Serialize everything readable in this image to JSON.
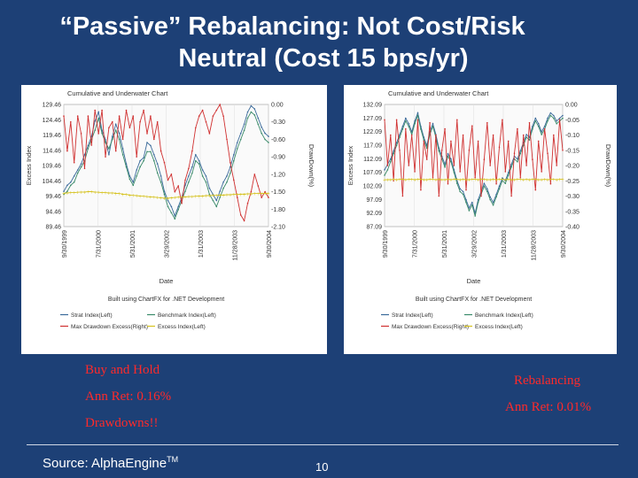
{
  "slide": {
    "title_line1": "“Passive” Rebalancing: Not Cost/Risk",
    "title_line2": "Neutral (Cost 15 bps/yr)",
    "left_caption": [
      "Buy and Hold",
      "Ann Ret: 0.16%",
      "Drawdowns!!"
    ],
    "right_caption": [
      "Rebalancing",
      "Ann Ret: 0.01%"
    ],
    "source_text": "Source: AlphaEngine",
    "source_tm": "TM",
    "page_number": "10"
  },
  "colors": {
    "strat": "#3a6a9a",
    "benchmark": "#3a8a6a",
    "drawdown": "#d03030",
    "excess": "#d6c21e",
    "caption": "#ff2a2a",
    "background": "#1d4076"
  },
  "chart_data": [
    {
      "type": "line",
      "title": "Cumulative and Underwater Chart",
      "xlabel": "Date",
      "ylabel": "Excess Index",
      "y2label": "DrawDown(%)",
      "footer": "Built using ChartFX for .NET Development",
      "x_ticks": [
        "9/30/1999",
        "7/31/2000",
        "5/31/2001",
        "3/29/2002",
        "1/31/2003",
        "11/28/2003",
        "9/30/2004"
      ],
      "y_ticks": [
        "129.46",
        "124.46",
        "119.46",
        "114.46",
        "109.46",
        "104.46",
        "99.46",
        "94.46",
        "89.46"
      ],
      "ylim": [
        89.46,
        129.46
      ],
      "y2_ticks": [
        "0.00",
        "-0.30",
        "-0.60",
        "-0.90",
        "-1.20",
        "-1.50",
        "-1.80",
        "-2.10"
      ],
      "y2lim": [
        -2.1,
        0
      ],
      "legend": [
        "Strat Index(Left)",
        "Benchmark Index(Left)",
        "Max Drawdown Excess(Right)",
        "Excess Index(Left)"
      ],
      "series": [
        {
          "name": "Strat Index(Left)",
          "axis": "left",
          "values": [
            101,
            103,
            104,
            106,
            108,
            110,
            113,
            116,
            119,
            124,
            127,
            121,
            118,
            113,
            119,
            123,
            120,
            115,
            110,
            106,
            104,
            108,
            111,
            112,
            117,
            116,
            113,
            110,
            106,
            101,
            98,
            96,
            93,
            96,
            99,
            103,
            106,
            109,
            113,
            111,
            108,
            106,
            102,
            100,
            98,
            101,
            104,
            106,
            109,
            113,
            117,
            120,
            123,
            127,
            129,
            128,
            125,
            122,
            120,
            119
          ]
        },
        {
          "name": "Benchmark Index(Left)",
          "axis": "left",
          "values": [
            100,
            101,
            103,
            104,
            107,
            109,
            111,
            115,
            118,
            121,
            125,
            120,
            117,
            115,
            118,
            121,
            118,
            113,
            109,
            105,
            103,
            106,
            109,
            111,
            114,
            114,
            111,
            107,
            104,
            100,
            96,
            94,
            92,
            95,
            98,
            101,
            104,
            107,
            111,
            110,
            106,
            104,
            100,
            98,
            96,
            99,
            102,
            104,
            107,
            111,
            115,
            118,
            121,
            125,
            127,
            126,
            123,
            120,
            118,
            117
          ]
        },
        {
          "name": "Max Drawdown Excess(Right)",
          "axis": "right",
          "values": [
            -0.2,
            -0.8,
            -0.3,
            -1.0,
            -0.2,
            -0.5,
            -1.1,
            -0.2,
            -0.7,
            -0.1,
            -0.5,
            -0.1,
            -0.9,
            -0.4,
            -0.3,
            -0.8,
            -0.2,
            -0.6,
            -0.1,
            -0.4,
            -0.2,
            -0.9,
            -0.3,
            -0.1,
            -0.5,
            -0.2,
            -0.6,
            -0.3,
            -0.8,
            -1.0,
            -1.3,
            -1.2,
            -1.5,
            -1.4,
            -1.7,
            -1.3,
            -1.1,
            -0.8,
            -0.4,
            -0.2,
            -0.1,
            -0.3,
            -0.5,
            -0.2,
            -0.1,
            0,
            -0.2,
            -0.6,
            -1.0,
            -1.3,
            -1.6,
            -1.9,
            -2.0,
            -1.7,
            -1.5,
            -1.2,
            -1.4,
            -1.6,
            -1.5,
            -1.6
          ]
        },
        {
          "name": "Excess Index(Left)",
          "axis": "left",
          "values": [
            100.4,
            100.5,
            100.6,
            100.6,
            100.7,
            100.8,
            100.8,
            100.9,
            100.9,
            100.8,
            100.7,
            100.6,
            100.6,
            100.5,
            100.5,
            100.4,
            100.3,
            100.1,
            100.0,
            99.8,
            99.7,
            99.6,
            99.5,
            99.4,
            99.3,
            99.2,
            99.1,
            99.0,
            98.9,
            98.8,
            98.8,
            98.9,
            99.0,
            99.1,
            99.1,
            99.2,
            99.3,
            99.3,
            99.4,
            99.5,
            99.5,
            99.6,
            99.6,
            99.7,
            99.7,
            99.8,
            99.8,
            99.9,
            99.9,
            100.0,
            100.0,
            100.1,
            100.1,
            100.2,
            100.2,
            100.3,
            100.3,
            100.3,
            100.4,
            100.4
          ]
        }
      ]
    },
    {
      "type": "line",
      "title": "Cumulative and Underwater Chart",
      "xlabel": "Date",
      "ylabel": "Excess Index",
      "y2label": "DrawDown(%)",
      "footer": "Built using ChartFX for .NET Development",
      "x_ticks": [
        "9/30/1999",
        "7/31/2000",
        "5/31/2001",
        "3/29/2002",
        "1/31/2003",
        "11/28/2003",
        "9/30/2004"
      ],
      "y_ticks": [
        "132.09",
        "127.09",
        "122.09",
        "117.09",
        "112.09",
        "107.09",
        "102.09",
        "97.09",
        "92.09",
        "87.09"
      ],
      "ylim": [
        87.09,
        132.09
      ],
      "y2_ticks": [
        "0.00",
        "-0.05",
        "-0.10",
        "-0.15",
        "-0.20",
        "-0.25",
        "-0.30",
        "-0.35",
        "-0.40"
      ],
      "y2lim": [
        -0.4,
        0
      ],
      "legend": [
        "Strat Index(Left)",
        "Benchmark Index(Left)",
        "Max Drawdown Excess(Right)",
        "Excess Index(Left)"
      ],
      "series": [
        {
          "name": "Strat Index(Left)",
          "axis": "left",
          "values": [
            108,
            110,
            112,
            115,
            118,
            121,
            124,
            127,
            125,
            122,
            126,
            129,
            124,
            120,
            117,
            122,
            125,
            121,
            116,
            113,
            110,
            114,
            112,
            108,
            104,
            101,
            100,
            97,
            94,
            96,
            92,
            97,
            100,
            103,
            101,
            98,
            96,
            99,
            102,
            105,
            104,
            107,
            110,
            113,
            112,
            115,
            118,
            121,
            120,
            124,
            127,
            125,
            122,
            124,
            127,
            129,
            128,
            126,
            127,
            128
          ]
        },
        {
          "name": "Benchmark Index(Left)",
          "axis": "left",
          "values": [
            106,
            108,
            111,
            114,
            117,
            120,
            123,
            126,
            124,
            121,
            125,
            128,
            123,
            119,
            116,
            121,
            124,
            120,
            115,
            112,
            109,
            113,
            111,
            107,
            103,
            100,
            99,
            96,
            93,
            95,
            91,
            96,
            99,
            102,
            100,
            97,
            95,
            98,
            101,
            104,
            103,
            106,
            109,
            112,
            111,
            114,
            117,
            120,
            119,
            123,
            126,
            124,
            121,
            123,
            126,
            128,
            127,
            125,
            126,
            127
          ]
        },
        {
          "name": "Max Drawdown Excess(Right)",
          "axis": "right",
          "values": [
            -0.05,
            -0.2,
            -0.1,
            -0.25,
            -0.05,
            -0.15,
            -0.3,
            -0.08,
            -0.2,
            -0.1,
            -0.22,
            -0.05,
            -0.28,
            -0.12,
            -0.18,
            -0.06,
            -0.24,
            -0.1,
            -0.3,
            -0.15,
            -0.08,
            -0.26,
            -0.12,
            -0.2,
            -0.05,
            -0.22,
            -0.1,
            -0.28,
            -0.15,
            -0.07,
            -0.24,
            -0.12,
            -0.3,
            -0.18,
            -0.06,
            -0.2,
            -0.1,
            -0.26,
            -0.14,
            -0.05,
            -0.22,
            -0.12,
            -0.3,
            -0.16,
            -0.08,
            -0.24,
            -0.1,
            -0.2,
            -0.06,
            -0.18,
            -0.28,
            -0.12,
            -0.22,
            -0.08,
            -0.16,
            -0.26,
            -0.1,
            -0.2,
            -0.05,
            -0.15
          ]
        },
        {
          "name": "Excess Index(Left)",
          "axis": "left",
          "values": [
            104.3,
            104.4,
            104.4,
            104.5,
            104.4,
            104.5,
            104.5,
            104.4,
            104.5,
            104.5,
            104.4,
            104.5,
            104.5,
            104.4,
            104.4,
            104.5,
            104.5,
            104.4,
            104.5,
            104.4,
            104.4,
            104.5,
            104.4,
            104.5,
            104.5,
            104.4,
            104.5,
            104.4,
            104.4,
            104.5,
            104.5,
            104.4,
            104.5,
            104.5,
            104.4,
            104.4,
            104.5,
            104.4,
            104.5,
            104.5,
            104.4,
            104.5,
            104.4,
            104.4,
            104.5,
            104.5,
            104.4,
            104.5,
            104.4,
            104.5,
            104.5,
            104.4,
            104.4,
            104.5,
            104.4,
            104.5,
            104.5,
            104.4,
            104.5,
            104.5
          ]
        }
      ]
    }
  ]
}
